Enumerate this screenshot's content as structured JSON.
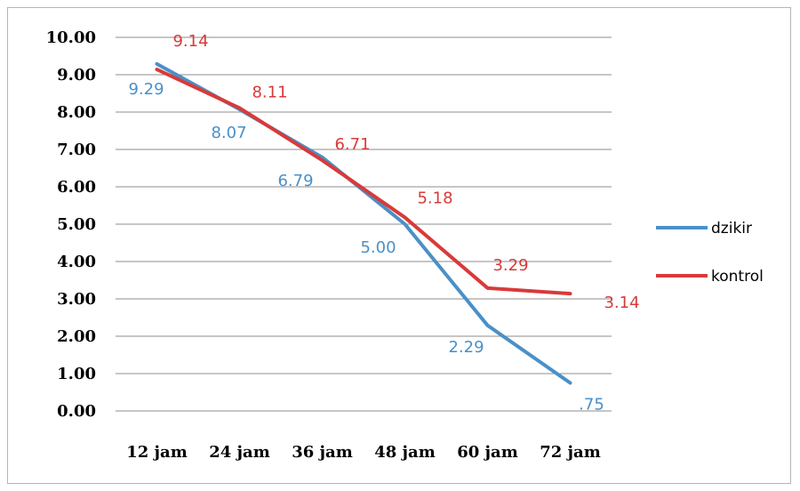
{
  "chart_data": {
    "type": "line",
    "title": "",
    "xlabel": "",
    "ylabel": "",
    "categories": [
      "12 jam",
      "24 jam",
      "36 jam",
      "48 jam",
      "60 jam",
      "72 jam"
    ],
    "ylim": [
      0,
      10
    ],
    "yticks": [
      "0.00",
      "1.00",
      "2.00",
      "3.00",
      "4.00",
      "5.00",
      "6.00",
      "7.00",
      "8.00",
      "9.00",
      "10.00"
    ],
    "grid": true,
    "legend_position": "right",
    "series": [
      {
        "name": "dzikir",
        "color": "#4a90c8",
        "values": [
          9.29,
          8.07,
          6.79,
          5.0,
          2.29,
          0.75
        ],
        "labels": [
          "9.29",
          "8.07",
          "6.79",
          "5.00",
          "2.29",
          ".75"
        ]
      },
      {
        "name": "kontrol",
        "color": "#d83a3a",
        "values": [
          9.14,
          8.11,
          6.71,
          5.18,
          3.29,
          3.14
        ],
        "labels": [
          "9.14",
          "8.11",
          "6.71",
          "5.18",
          "3.29",
          "3.14"
        ]
      }
    ]
  }
}
